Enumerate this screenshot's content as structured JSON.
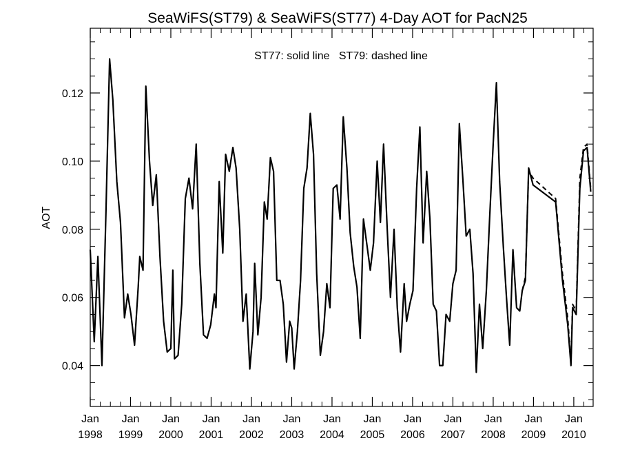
{
  "chart_data": {
    "type": "line",
    "title": "SeaWiFS(ST79) & SeaWiFS(ST77) 4-Day AOT for PacN25",
    "annotation": "ST77: solid line   ST79: dashed line",
    "xlabel": "",
    "ylabel": "AOT",
    "xlim": [
      1998.0,
      2010.48
    ],
    "ylim": [
      0.028,
      0.139
    ],
    "grid": false,
    "y_ticks": [
      {
        "value": 0.04,
        "label": "0.04"
      },
      {
        "value": 0.06,
        "label": "0.06"
      },
      {
        "value": 0.08,
        "label": "0.08"
      },
      {
        "value": 0.1,
        "label": "0.10"
      },
      {
        "value": 0.12,
        "label": "0.12"
      }
    ],
    "x_ticks": [
      {
        "value": 1998,
        "month": "Jan",
        "year": "1998"
      },
      {
        "value": 1999,
        "month": "Jan",
        "year": "1999"
      },
      {
        "value": 2000,
        "month": "Jan",
        "year": "2000"
      },
      {
        "value": 2001,
        "month": "Jan",
        "year": "2001"
      },
      {
        "value": 2002,
        "month": "Jan",
        "year": "2002"
      },
      {
        "value": 2003,
        "month": "Jan",
        "year": "2003"
      },
      {
        "value": 2004,
        "month": "Jan",
        "year": "2004"
      },
      {
        "value": 2005,
        "month": "Jan",
        "year": "2005"
      },
      {
        "value": 2006,
        "month": "Jan",
        "year": "2006"
      },
      {
        "value": 2007,
        "month": "Jan",
        "year": "2007"
      },
      {
        "value": 2008,
        "month": "Jan",
        "year": "2008"
      },
      {
        "value": 2009,
        "month": "Jan",
        "year": "2009"
      },
      {
        "value": 2010,
        "month": "Jan",
        "year": "2010"
      }
    ],
    "series": [
      {
        "name": "ST77",
        "style": "solid",
        "color": "#000000",
        "points": [
          [
            1998.0,
            0.074
          ],
          [
            1998.1,
            0.047
          ],
          [
            1998.19,
            0.072
          ],
          [
            1998.29,
            0.04
          ],
          [
            1998.39,
            0.085
          ],
          [
            1998.48,
            0.13
          ],
          [
            1998.56,
            0.118
          ],
          [
            1998.66,
            0.094
          ],
          [
            1998.75,
            0.082
          ],
          [
            1998.85,
            0.054
          ],
          [
            1998.93,
            0.061
          ],
          [
            1999.01,
            0.055
          ],
          [
            1999.1,
            0.046
          ],
          [
            1999.19,
            0.063
          ],
          [
            1999.23,
            0.072
          ],
          [
            1999.31,
            0.068
          ],
          [
            1999.38,
            0.122
          ],
          [
            1999.47,
            0.1
          ],
          [
            1999.55,
            0.087
          ],
          [
            1999.64,
            0.096
          ],
          [
            1999.73,
            0.072
          ],
          [
            1999.82,
            0.053
          ],
          [
            1999.91,
            0.044
          ],
          [
            2000.0,
            0.045
          ],
          [
            2000.05,
            0.068
          ],
          [
            2000.09,
            0.042
          ],
          [
            2000.18,
            0.043
          ],
          [
            2000.27,
            0.058
          ],
          [
            2000.36,
            0.089
          ],
          [
            2000.45,
            0.095
          ],
          [
            2000.54,
            0.086
          ],
          [
            2000.63,
            0.105
          ],
          [
            2000.72,
            0.07
          ],
          [
            2000.81,
            0.049
          ],
          [
            2000.9,
            0.048
          ],
          [
            2000.99,
            0.052
          ],
          [
            2001.08,
            0.061
          ],
          [
            2001.12,
            0.057
          ],
          [
            2001.2,
            0.094
          ],
          [
            2001.29,
            0.073
          ],
          [
            2001.36,
            0.102
          ],
          [
            2001.45,
            0.097
          ],
          [
            2001.54,
            0.104
          ],
          [
            2001.62,
            0.098
          ],
          [
            2001.71,
            0.08
          ],
          [
            2001.79,
            0.053
          ],
          [
            2001.87,
            0.061
          ],
          [
            2001.96,
            0.039
          ],
          [
            2002.04,
            0.05
          ],
          [
            2002.08,
            0.07
          ],
          [
            2002.16,
            0.049
          ],
          [
            2002.24,
            0.06
          ],
          [
            2002.32,
            0.088
          ],
          [
            2002.39,
            0.083
          ],
          [
            2002.47,
            0.101
          ],
          [
            2002.55,
            0.097
          ],
          [
            2002.63,
            0.065
          ],
          [
            2002.71,
            0.065
          ],
          [
            2002.79,
            0.058
          ],
          [
            2002.87,
            0.041
          ],
          [
            2002.95,
            0.053
          ],
          [
            2003.0,
            0.051
          ],
          [
            2003.06,
            0.039
          ],
          [
            2003.14,
            0.05
          ],
          [
            2003.22,
            0.065
          ],
          [
            2003.3,
            0.092
          ],
          [
            2003.38,
            0.098
          ],
          [
            2003.46,
            0.114
          ],
          [
            2003.54,
            0.102
          ],
          [
            2003.62,
            0.067
          ],
          [
            2003.71,
            0.043
          ],
          [
            2003.79,
            0.05
          ],
          [
            2003.87,
            0.064
          ],
          [
            2003.95,
            0.057
          ],
          [
            2004.03,
            0.092
          ],
          [
            2004.12,
            0.093
          ],
          [
            2004.2,
            0.083
          ],
          [
            2004.28,
            0.113
          ],
          [
            2004.37,
            0.098
          ],
          [
            2004.45,
            0.079
          ],
          [
            2004.54,
            0.069
          ],
          [
            2004.62,
            0.063
          ],
          [
            2004.7,
            0.048
          ],
          [
            2004.78,
            0.083
          ],
          [
            2004.87,
            0.075
          ],
          [
            2004.95,
            0.068
          ],
          [
            2005.03,
            0.076
          ],
          [
            2005.12,
            0.1
          ],
          [
            2005.2,
            0.082
          ],
          [
            2005.28,
            0.105
          ],
          [
            2005.37,
            0.08
          ],
          [
            2005.45,
            0.06
          ],
          [
            2005.54,
            0.08
          ],
          [
            2005.62,
            0.057
          ],
          [
            2005.7,
            0.044
          ],
          [
            2005.79,
            0.064
          ],
          [
            2005.85,
            0.053
          ],
          [
            2005.93,
            0.058
          ],
          [
            2006.01,
            0.062
          ],
          [
            2006.1,
            0.092
          ],
          [
            2006.18,
            0.11
          ],
          [
            2006.26,
            0.076
          ],
          [
            2006.35,
            0.097
          ],
          [
            2006.43,
            0.083
          ],
          [
            2006.51,
            0.058
          ],
          [
            2006.59,
            0.056
          ],
          [
            2006.67,
            0.04
          ],
          [
            2006.75,
            0.04
          ],
          [
            2006.83,
            0.055
          ],
          [
            2006.92,
            0.053
          ],
          [
            2007.0,
            0.064
          ],
          [
            2007.08,
            0.068
          ],
          [
            2007.16,
            0.111
          ],
          [
            2007.25,
            0.094
          ],
          [
            2007.33,
            0.078
          ],
          [
            2007.42,
            0.08
          ],
          [
            2007.5,
            0.067
          ],
          [
            2007.58,
            0.038
          ],
          [
            2007.66,
            0.058
          ],
          [
            2007.74,
            0.045
          ],
          [
            2007.83,
            0.062
          ],
          [
            2007.91,
            0.083
          ],
          [
            2008.0,
            0.105
          ],
          [
            2008.08,
            0.123
          ],
          [
            2008.16,
            0.094
          ],
          [
            2008.25,
            0.075
          ],
          [
            2008.33,
            0.06
          ],
          [
            2008.41,
            0.046
          ],
          [
            2008.49,
            0.074
          ],
          [
            2008.58,
            0.057
          ],
          [
            2008.66,
            0.056
          ],
          [
            2008.72,
            0.062
          ],
          [
            2008.8,
            0.065
          ],
          [
            2008.88,
            0.098
          ],
          [
            2008.99,
            0.093
          ],
          [
            2009.55,
            0.088
          ],
          [
            2009.72,
            0.065
          ],
          [
            2009.85,
            0.052
          ],
          [
            2009.93,
            0.04
          ],
          [
            2009.97,
            0.057
          ],
          [
            2010.06,
            0.055
          ],
          [
            2010.15,
            0.092
          ],
          [
            2010.24,
            0.103
          ],
          [
            2010.33,
            0.104
          ],
          [
            2010.42,
            0.091
          ]
        ]
      },
      {
        "name": "ST79",
        "style": "dashed",
        "color": "#000000",
        "points": [
          [
            2008.72,
            0.062
          ],
          [
            2008.8,
            0.066
          ],
          [
            2008.88,
            0.097
          ],
          [
            2008.99,
            0.095
          ],
          [
            2009.55,
            0.089
          ],
          [
            2009.72,
            0.067
          ],
          [
            2009.85,
            0.054
          ],
          [
            2009.93,
            0.041
          ],
          [
            2009.97,
            0.058
          ],
          [
            2010.06,
            0.056
          ],
          [
            2010.15,
            0.095
          ],
          [
            2010.24,
            0.104
          ],
          [
            2010.33,
            0.105
          ],
          [
            2010.42,
            0.092
          ]
        ]
      }
    ]
  }
}
